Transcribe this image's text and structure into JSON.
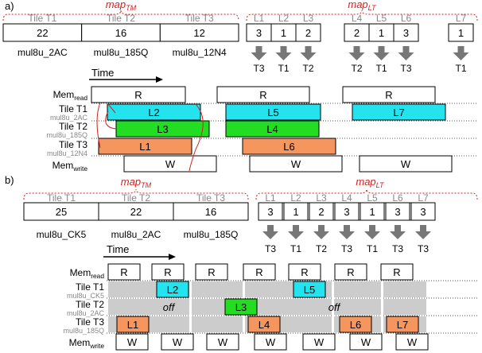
{
  "colors": {
    "accent_red": "#d42020",
    "cyan": "#22e3ee",
    "green": "#22dd22",
    "orange": "#f5965f",
    "gray_bar": "#cccccc",
    "arrow_gray": "#777777",
    "subtle_text": "#888888"
  },
  "panels": [
    {
      "label": "a)",
      "mapTM": {
        "title": "map",
        "sub": "TM"
      },
      "mapLT": {
        "title": "map",
        "sub": "LT"
      },
      "tiles": [
        {
          "name": "Tile T1",
          "value": "22",
          "multiplier": "mul8u_2AC"
        },
        {
          "name": "Tile T2",
          "value": "16",
          "multiplier": "mul8u_185Q"
        },
        {
          "name": "Tile T3",
          "value": "12",
          "multiplier": "mul8u_12N4"
        }
      ],
      "layers": [
        {
          "name": "L1",
          "value": "3",
          "target": "T3"
        },
        {
          "name": "L2",
          "value": "1",
          "target": "T1"
        },
        {
          "name": "L3",
          "value": "2",
          "target": "T2"
        },
        {
          "name": "L4",
          "value": "2",
          "target": "T2"
        },
        {
          "name": "L5",
          "value": "1",
          "target": "T1"
        },
        {
          "name": "L6",
          "value": "3",
          "target": "T3"
        },
        {
          "name": "L7",
          "value": "1",
          "target": "T1"
        }
      ],
      "time_label": "Time",
      "rows": {
        "mem_read": {
          "main": "Mem",
          "sub": "read"
        },
        "t1": {
          "main": "Tile T1",
          "mult": "mul8u_2AC"
        },
        "t2": {
          "main": "Tile T2",
          "mult": "mul8u_185Q"
        },
        "t3": {
          "main": "Tile T3",
          "mult": "mul8u_12N4"
        },
        "mem_write": {
          "main": "Mem",
          "sub": "write"
        }
      },
      "read_blocks": [
        "R",
        "R",
        "R"
      ],
      "write_blocks": [
        "W",
        "W",
        "W"
      ],
      "layer_blocks": [
        "L2",
        "L5",
        "L7",
        "L3",
        "L4",
        "L1",
        "L6"
      ]
    },
    {
      "label": "b)",
      "mapTM": {
        "title": "map",
        "sub": "TM"
      },
      "mapLT": {
        "title": "map",
        "sub": "LT"
      },
      "tiles": [
        {
          "name": "Tile T1",
          "value": "25",
          "multiplier": "mul8u_CK5"
        },
        {
          "name": "Tile T2",
          "value": "22",
          "multiplier": "mul8u_2AC"
        },
        {
          "name": "Tile T3",
          "value": "16",
          "multiplier": "mul8u_185Q"
        }
      ],
      "layers": [
        {
          "name": "L1",
          "value": "3",
          "target": "T3"
        },
        {
          "name": "L2",
          "value": "1",
          "target": "T1"
        },
        {
          "name": "L3",
          "value": "2",
          "target": "T2"
        },
        {
          "name": "L4",
          "value": "3",
          "target": "T3"
        },
        {
          "name": "L5",
          "value": "1",
          "target": "T1"
        },
        {
          "name": "L6",
          "value": "3",
          "target": "T3"
        },
        {
          "name": "L7",
          "value": "3",
          "target": "T3"
        }
      ],
      "time_label": "Time",
      "rows": {
        "mem_read": {
          "main": "Mem",
          "sub": "read"
        },
        "t1": {
          "main": "Tile T1",
          "mult": "mul8u_CK5"
        },
        "t2": {
          "main": "Tile T2",
          "mult": "mul8u_2AC"
        },
        "t3": {
          "main": "Tile T3",
          "mult": "mul8u_185Q"
        },
        "mem_write": {
          "main": "Mem",
          "sub": "write"
        }
      },
      "read_blocks": [
        "R",
        "R",
        "R",
        "R",
        "R",
        "R",
        "R"
      ],
      "write_blocks": [
        "W",
        "W",
        "W",
        "W",
        "W",
        "W",
        "W"
      ],
      "layer_blocks": [
        "L2",
        "L5",
        "L3",
        "L1",
        "L4",
        "L6",
        "L7"
      ],
      "off_labels": [
        "off",
        "off"
      ]
    }
  ]
}
